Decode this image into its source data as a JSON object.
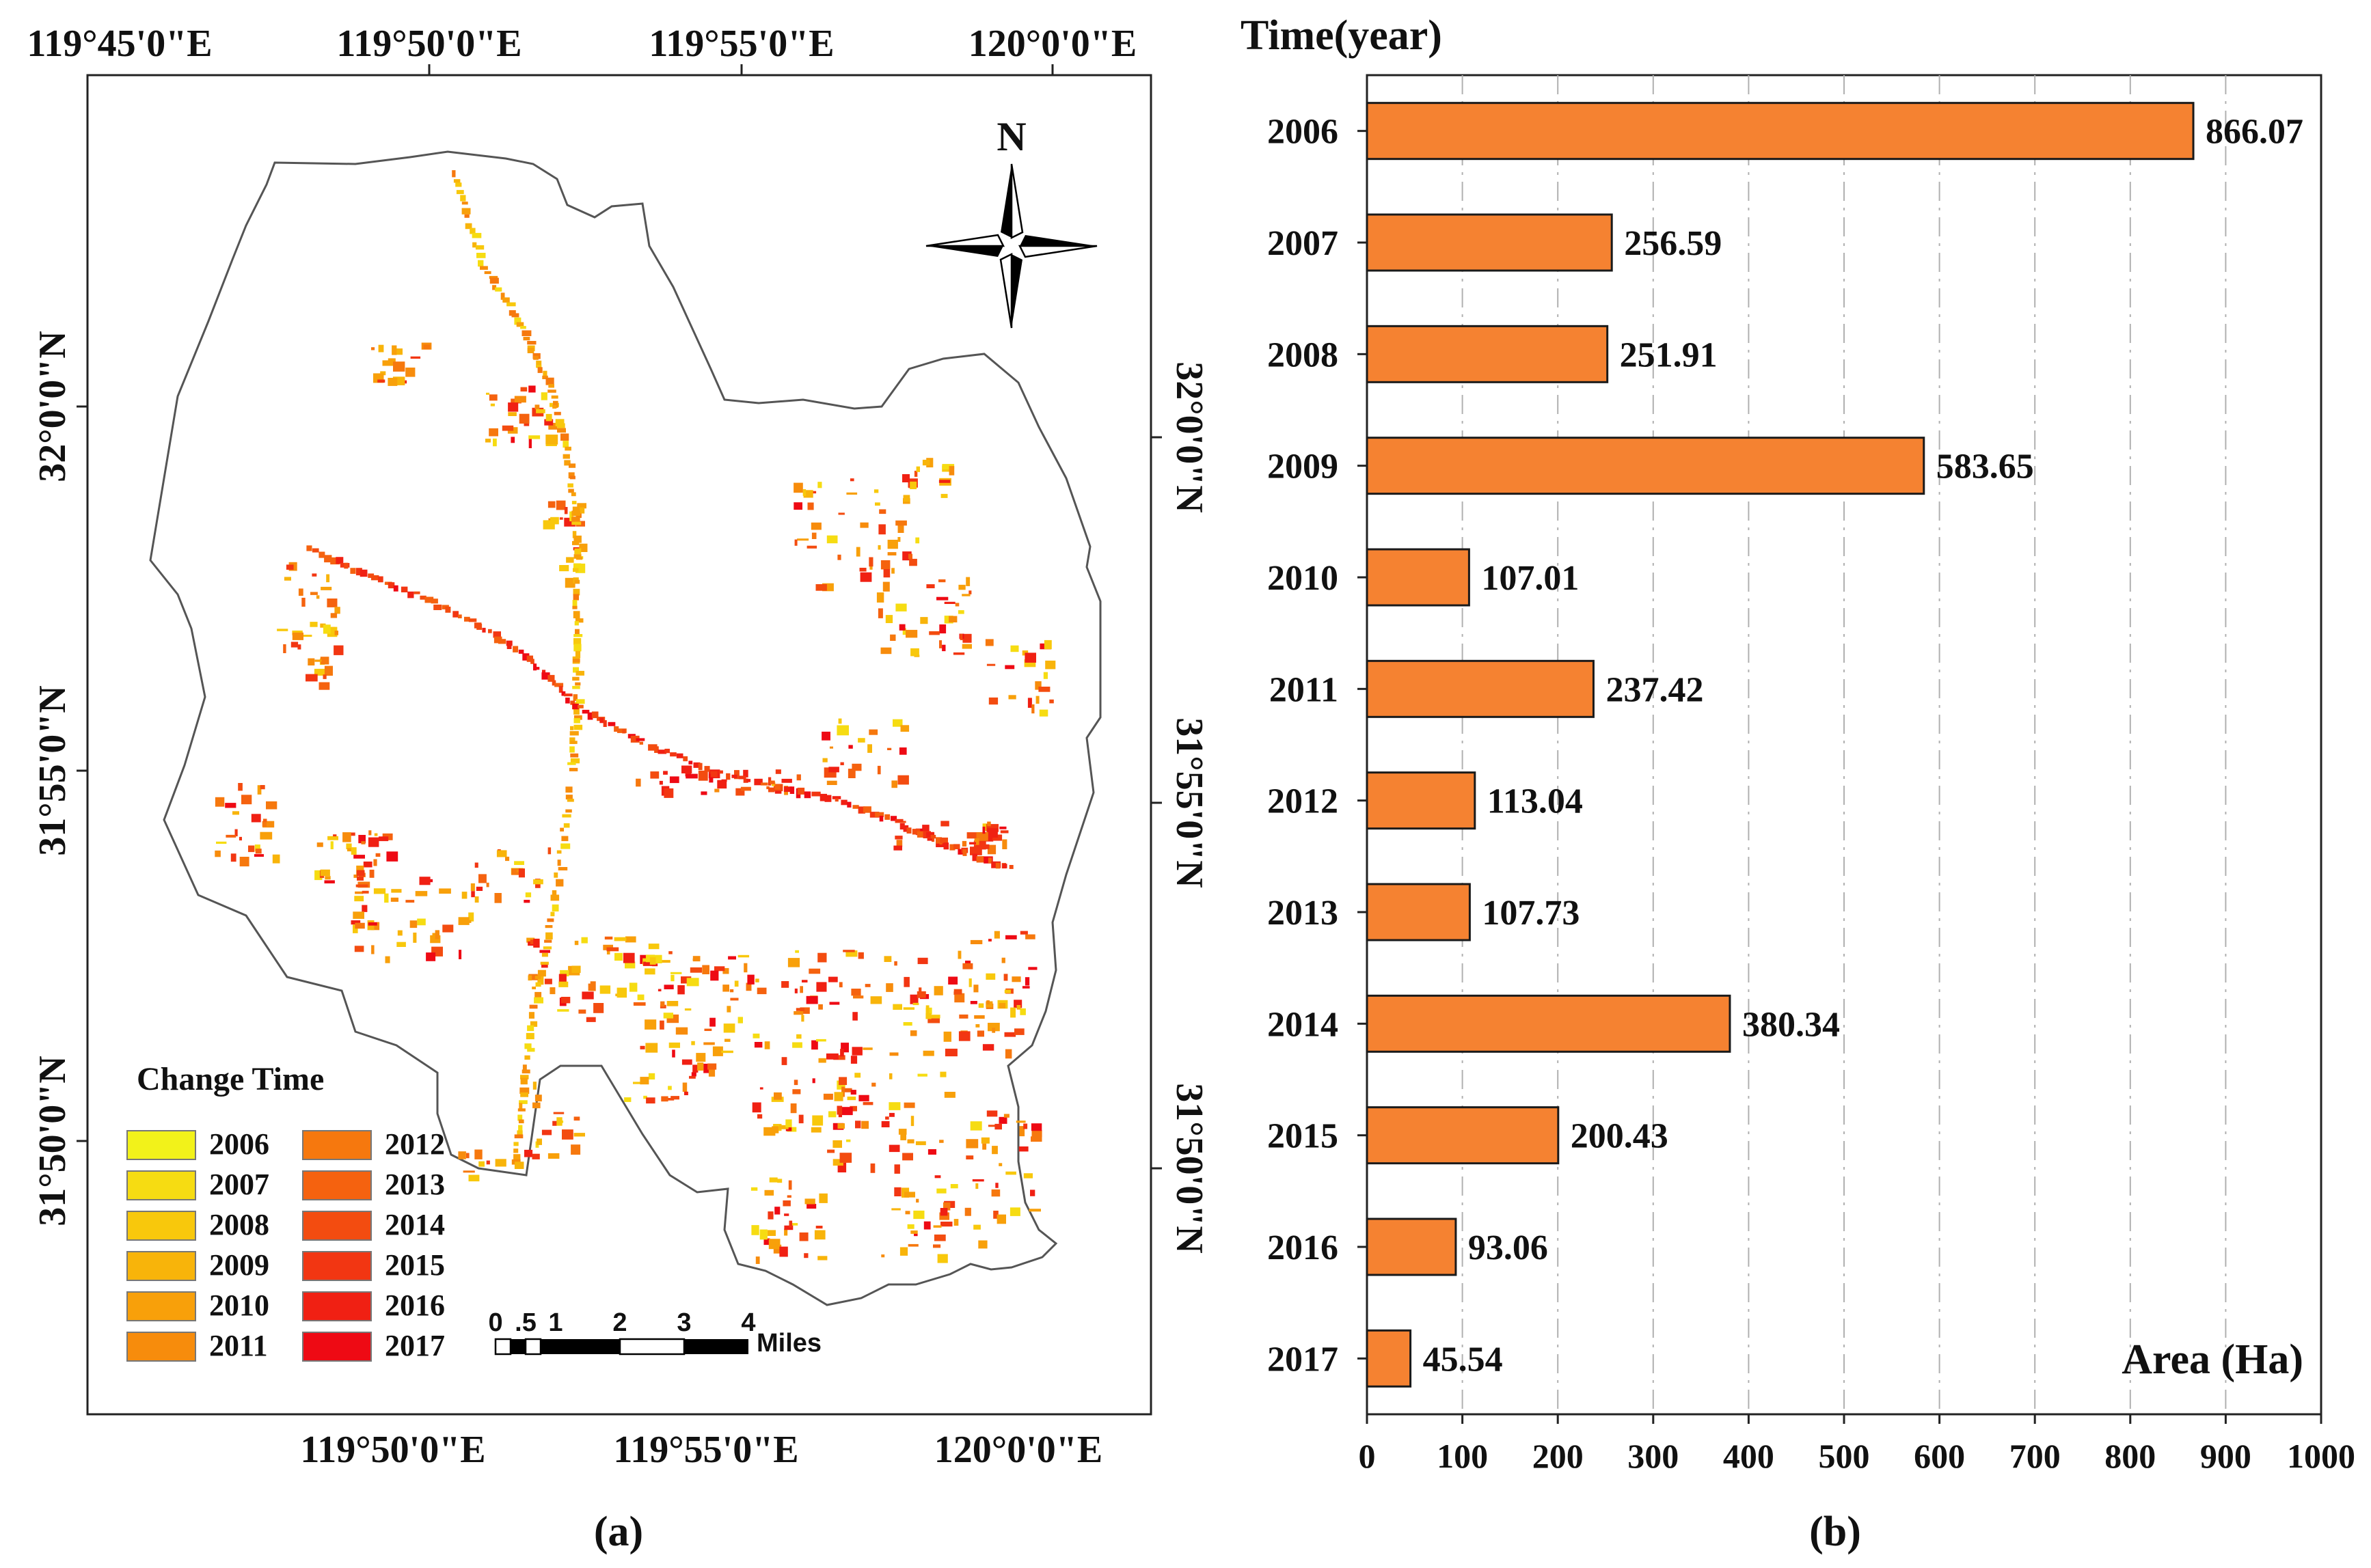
{
  "map_panel": {
    "top_labels": [
      "119°45'0\"E",
      "119°50'0\"E",
      "119°55'0\"E",
      "120°0'0\"E"
    ],
    "bottom_labels": [
      "119°50'0\"E",
      "119°55'0\"E",
      "120°0'0\"E"
    ],
    "left_labels": [
      "32°0'0\"N",
      "31°55'0\"N",
      "31°50'0\"N"
    ],
    "right_labels": [
      "32°0'0\"N",
      "31°55'0\"N",
      "31°50'0\"N"
    ],
    "north_label": "N",
    "legend_title": "Change Time",
    "legend_items": [
      {
        "label": "2006",
        "color": "#f2f21a"
      },
      {
        "label": "2007",
        "color": "#f6dc12"
      },
      {
        "label": "2008",
        "color": "#f8c80c"
      },
      {
        "label": "2009",
        "color": "#f8b40a"
      },
      {
        "label": "2010",
        "color": "#f8a00a"
      },
      {
        "label": "2011",
        "color": "#f78c0c"
      },
      {
        "label": "2012",
        "color": "#f6780e"
      },
      {
        "label": "2013",
        "color": "#f5620f"
      },
      {
        "label": "2014",
        "color": "#f34c10"
      },
      {
        "label": "2015",
        "color": "#f23612"
      },
      {
        "label": "2016",
        "color": "#f02013"
      },
      {
        "label": "2017",
        "color": "#ee0a14"
      }
    ],
    "scale_ticks": [
      "0",
      ".5",
      "1",
      "2",
      "3",
      "4"
    ],
    "scale_unit": "Miles",
    "caption": "(a)"
  },
  "chart_data": {
    "type": "bar",
    "orientation": "horizontal",
    "categories": [
      "2006",
      "2007",
      "2008",
      "2009",
      "2010",
      "2011",
      "2012",
      "2013",
      "2014",
      "2015",
      "2016",
      "2017"
    ],
    "values": [
      866.07,
      256.59,
      251.91,
      583.65,
      107.01,
      237.42,
      113.04,
      107.73,
      380.34,
      200.43,
      93.06,
      45.54
    ],
    "value_labels": [
      "866.07",
      "256.59",
      "251.91",
      "583.65",
      "107.01",
      "237.42",
      "113.04",
      "107.73",
      "380.34",
      "200.43",
      "93.06",
      "45.54"
    ],
    "ylabel": "Time(year)",
    "xlabel": "Area (Ha)",
    "xlim": [
      0,
      1000
    ],
    "xticks": [
      0,
      100,
      200,
      300,
      400,
      500,
      600,
      700,
      800,
      900,
      1000
    ],
    "grid": "vertical dash-dot",
    "bar_color": "#f58231",
    "caption": "(b)"
  }
}
